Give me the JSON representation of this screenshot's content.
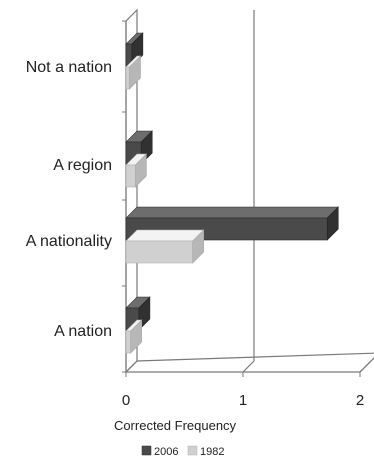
{
  "chart_data": {
    "type": "bar",
    "orientation": "horizontal",
    "three_d": true,
    "categories": [
      "Not a nation",
      "A region",
      "A nationality",
      "A nation"
    ],
    "series": [
      {
        "name": "2006",
        "color": "#4a4a4a",
        "values": [
          0.05,
          0.13,
          1.72,
          0.11
        ]
      },
      {
        "name": "1982",
        "color": "#d0d0d0",
        "values": [
          0.03,
          0.08,
          0.57,
          0.04
        ]
      }
    ],
    "xlabel": "Corrected Frequency",
    "ylabel": "",
    "xlim": [
      0,
      2
    ],
    "xticks": [
      "0",
      "1",
      "2"
    ],
    "grid": true,
    "legend_position": "bottom"
  }
}
